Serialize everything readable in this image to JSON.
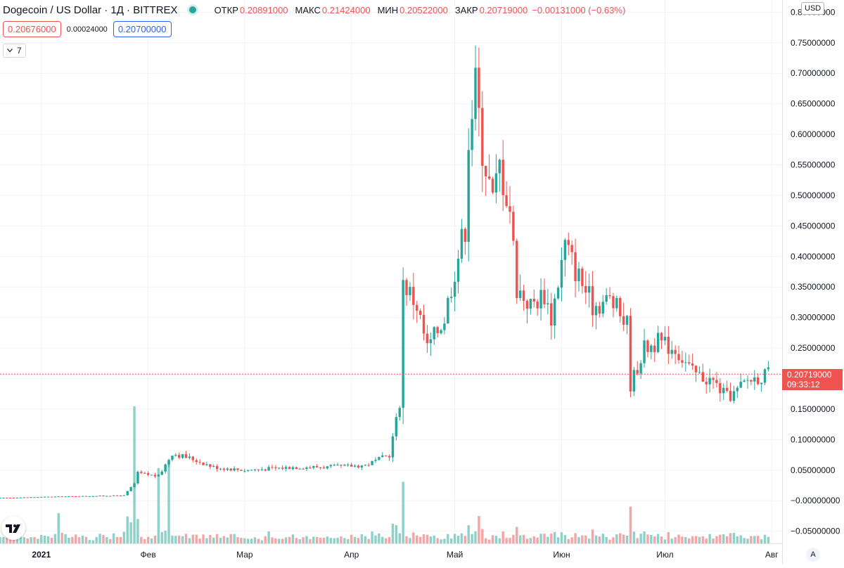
{
  "header": {
    "symbol_title": "Dogecoin / US Dollar · 1Д · BITTREX",
    "open_label": "ОТКР",
    "open_value": "0.20891000",
    "high_label": "МАКС",
    "high_value": "0.21424000",
    "low_label": "МИН",
    "low_value": "0.20522000",
    "close_label": "ЗАКР",
    "close_value": "0.20719000",
    "change_value": "−0.00131000 (−0.63%)"
  },
  "quotes": {
    "sell": "0.20676000",
    "spread": "0.00024000",
    "buy": "0.20700000"
  },
  "indicators_count": "7",
  "currency_button": "USD",
  "auto_scale_label": "A",
  "last_price": {
    "value": "0.20719000",
    "countdown": "09:33:12"
  },
  "colors": {
    "up": "#26a69a",
    "down": "#ef5350",
    "volume_up": "#8fd0c9",
    "volume_down": "#f5a5a5",
    "grid": "#f0f3fa"
  },
  "icons": [
    "tradingview-logo-icon",
    "chevron-down-icon",
    "status-dot-icon"
  ],
  "chart_data": {
    "type": "candlestick",
    "title": "Dogecoin / US Dollar · 1Д · BITTREX",
    "y_axis": {
      "ticks": [
        "0.80000000",
        "0.75000000",
        "0.70000000",
        "0.65000000",
        "0.60000000",
        "0.55000000",
        "0.50000000",
        "0.45000000",
        "0.40000000",
        "0.35000000",
        "0.30000000",
        "0.25000000",
        "0.20000000",
        "0.15000000",
        "0.10000000",
        "0.05000000",
        "−0.00000000",
        "−0.05000000"
      ],
      "range": [
        -0.07,
        0.82
      ],
      "position": "right"
    },
    "x_axis": {
      "ticks": [
        "2021",
        "Фев",
        "Мар",
        "Апр",
        "Май",
        "Июн",
        "Июл",
        "Авг"
      ],
      "range": [
        "2020-12-20",
        "2021-08-04"
      ]
    },
    "grid": true,
    "price_line": 0.20719,
    "series_anchors": [
      {
        "x": "2020-12-20",
        "y": 0.0045
      },
      {
        "x": "2021-01-05",
        "y": 0.0065
      },
      {
        "x": "2021-01-25",
        "y": 0.0085
      },
      {
        "x": "2021-01-28",
        "y": 0.028
      },
      {
        "x": "2021-01-29",
        "y": 0.045
      },
      {
        "x": "2021-02-04",
        "y": 0.04
      },
      {
        "x": "2021-02-08",
        "y": 0.078
      },
      {
        "x": "2021-02-14",
        "y": 0.068
      },
      {
        "x": "2021-02-20",
        "y": 0.055
      },
      {
        "x": "2021-03-01",
        "y": 0.05
      },
      {
        "x": "2021-03-15",
        "y": 0.055
      },
      {
        "x": "2021-03-25",
        "y": 0.055
      },
      {
        "x": "2021-04-05",
        "y": 0.058
      },
      {
        "x": "2021-04-12",
        "y": 0.075
      },
      {
        "x": "2021-04-15",
        "y": 0.16
      },
      {
        "x": "2021-04-16",
        "y": 0.36
      },
      {
        "x": "2021-04-20",
        "y": 0.32
      },
      {
        "x": "2021-04-23",
        "y": 0.25
      },
      {
        "x": "2021-04-28",
        "y": 0.3
      },
      {
        "x": "2021-05-01",
        "y": 0.38
      },
      {
        "x": "2021-05-04",
        "y": 0.45
      },
      {
        "x": "2021-05-05",
        "y": 0.6
      },
      {
        "x": "2021-05-07",
        "y": 0.68
      },
      {
        "x": "2021-05-09",
        "y": 0.58
      },
      {
        "x": "2021-05-12",
        "y": 0.49
      },
      {
        "x": "2021-05-14",
        "y": 0.55
      },
      {
        "x": "2021-05-17",
        "y": 0.48
      },
      {
        "x": "2021-05-19",
        "y": 0.35
      },
      {
        "x": "2021-05-23",
        "y": 0.32
      },
      {
        "x": "2021-05-27",
        "y": 0.34
      },
      {
        "x": "2021-05-29",
        "y": 0.3
      },
      {
        "x": "2021-06-02",
        "y": 0.42
      },
      {
        "x": "2021-06-05",
        "y": 0.38
      },
      {
        "x": "2021-06-10",
        "y": 0.32
      },
      {
        "x": "2021-06-15",
        "y": 0.33
      },
      {
        "x": "2021-06-20",
        "y": 0.29
      },
      {
        "x": "2021-06-21",
        "y": 0.19
      },
      {
        "x": "2021-06-25",
        "y": 0.25
      },
      {
        "x": "2021-06-29",
        "y": 0.26
      },
      {
        "x": "2021-07-04",
        "y": 0.25
      },
      {
        "x": "2021-07-09",
        "y": 0.21
      },
      {
        "x": "2021-07-15",
        "y": 0.195
      },
      {
        "x": "2021-07-19",
        "y": 0.17
      },
      {
        "x": "2021-07-21",
        "y": 0.175
      },
      {
        "x": "2021-07-25",
        "y": 0.198
      },
      {
        "x": "2021-07-31",
        "y": 0.207
      }
    ],
    "volume_spikes": [
      {
        "x": "2021-01-28",
        "level": 1.0
      },
      {
        "x": "2021-02-04",
        "level": 0.55
      },
      {
        "x": "2021-02-07",
        "level": 0.6
      },
      {
        "x": "2021-04-16",
        "level": 0.45
      },
      {
        "x": "2021-05-08",
        "level": 0.2
      },
      {
        "x": "2021-01-06",
        "level": 0.22
      }
    ]
  }
}
